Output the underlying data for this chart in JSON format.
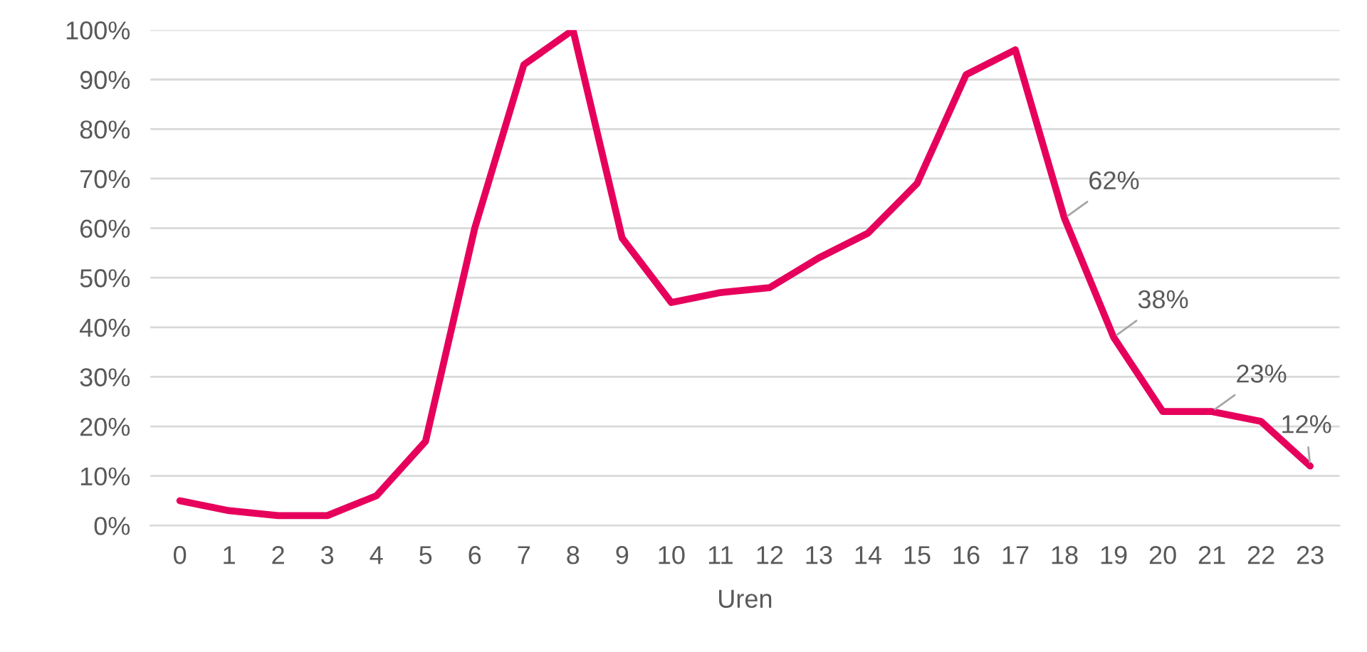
{
  "chart_data": {
    "type": "line",
    "xlabel": "Uren",
    "categories": [
      "0",
      "1",
      "2",
      "3",
      "4",
      "5",
      "6",
      "7",
      "8",
      "9",
      "10",
      "11",
      "12",
      "13",
      "14",
      "15",
      "16",
      "17",
      "18",
      "19",
      "20",
      "21",
      "22",
      "23"
    ],
    "series": [
      {
        "color": "#e6005c",
        "values": [
          5,
          3,
          2,
          2,
          6,
          17,
          60,
          93,
          100,
          58,
          45,
          47,
          48,
          54,
          59,
          69,
          91,
          96,
          62,
          38,
          23,
          23,
          21,
          12
        ],
        "value_labels": [
          null,
          null,
          null,
          null,
          null,
          null,
          null,
          null,
          null,
          null,
          null,
          null,
          null,
          null,
          null,
          null,
          null,
          null,
          "62%",
          "38%",
          null,
          "23%",
          null,
          "12%"
        ]
      }
    ],
    "ylim": [
      0,
      100
    ],
    "yticks": [
      {
        "value": 0,
        "label": "0%"
      },
      {
        "value": 10,
        "label": "10%"
      },
      {
        "value": 20,
        "label": "20%"
      },
      {
        "value": 30,
        "label": "30%"
      },
      {
        "value": 40,
        "label": "40%"
      },
      {
        "value": 50,
        "label": "50%"
      },
      {
        "value": 60,
        "label": "60%"
      },
      {
        "value": 70,
        "label": "70%"
      },
      {
        "value": 80,
        "label": "80%"
      },
      {
        "value": 90,
        "label": "90%"
      },
      {
        "value": 100,
        "label": "100%"
      }
    ],
    "grid": "y",
    "marker": "none",
    "line_style": "solid"
  }
}
